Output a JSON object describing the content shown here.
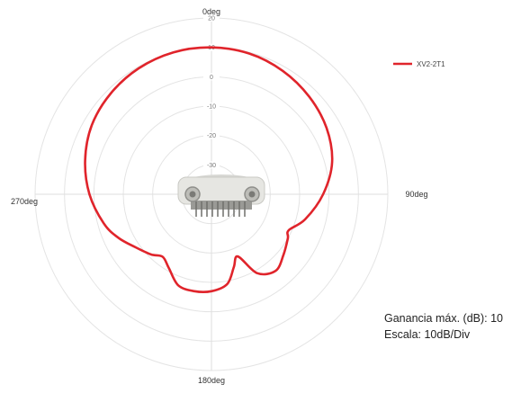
{
  "chart_data": {
    "type": "polar",
    "angle_labels": [
      {
        "angle": 0,
        "label": "0deg"
      },
      {
        "angle": 90,
        "label": "90deg"
      },
      {
        "angle": 180,
        "label": "180deg"
      },
      {
        "angle": 270,
        "label": "270deg"
      }
    ],
    "radial_ticks": [
      20,
      10,
      0,
      -10,
      -20,
      -30
    ],
    "radial_tick_labels": [
      "20",
      "10",
      "0",
      "-10",
      "-20",
      "-30"
    ],
    "rlim": [
      -40,
      20
    ],
    "grid": true,
    "legend_position": "top-right",
    "series": [
      {
        "name": "XV2-2T1",
        "color": "#e0242b",
        "points": [
          {
            "angle": 0,
            "value": 10
          },
          {
            "angle": 15,
            "value": 9.6
          },
          {
            "angle": 30,
            "value": 8.5
          },
          {
            "angle": 45,
            "value": 7
          },
          {
            "angle": 60,
            "value": 5.2
          },
          {
            "angle": 75,
            "value": 2.5
          },
          {
            "angle": 90,
            "value": -2
          },
          {
            "angle": 105,
            "value": -7
          },
          {
            "angle": 115,
            "value": -11
          },
          {
            "angle": 120,
            "value": -10
          },
          {
            "angle": 130,
            "value": -8
          },
          {
            "angle": 140,
            "value": -6
          },
          {
            "angle": 150,
            "value": -9
          },
          {
            "angle": 157,
            "value": -17
          },
          {
            "angle": 163,
            "value": -14
          },
          {
            "angle": 170,
            "value": -9
          },
          {
            "angle": 180,
            "value": -7
          },
          {
            "angle": 190,
            "value": -6.5
          },
          {
            "angle": 200,
            "value": -7
          },
          {
            "angle": 210,
            "value": -11
          },
          {
            "angle": 218,
            "value": -13
          },
          {
            "angle": 225,
            "value": -11
          },
          {
            "angle": 235,
            "value": -8.5
          },
          {
            "angle": 245,
            "value": -5
          },
          {
            "angle": 255,
            "value": -2
          },
          {
            "angle": 270,
            "value": 1.5
          },
          {
            "angle": 285,
            "value": 4.5
          },
          {
            "angle": 300,
            "value": 7
          },
          {
            "angle": 315,
            "value": 8.5
          },
          {
            "angle": 330,
            "value": 9.5
          },
          {
            "angle": 345,
            "value": 10
          },
          {
            "angle": 360,
            "value": 10
          }
        ]
      }
    ]
  },
  "legend": {
    "label": "XV2-2T1"
  },
  "notes": {
    "gain": "Ganancia máx. (dB): 10",
    "scale": "Escala: 10dB/Div"
  },
  "device_image": {
    "icon": "antenna-device-icon",
    "body_color": "#e6e6e2"
  }
}
